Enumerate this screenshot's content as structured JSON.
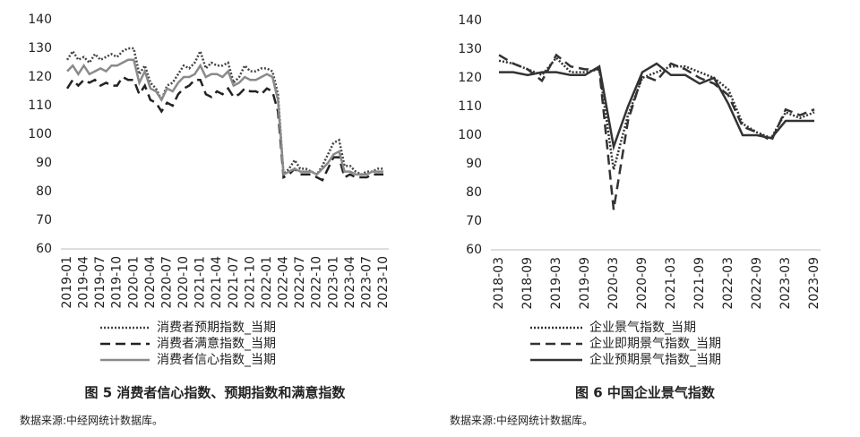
{
  "chart_data": [
    {
      "type": "line",
      "categories": [
        "2019-01",
        null,
        null,
        "2019-04",
        null,
        null,
        "2019-07",
        null,
        null,
        "2019-10",
        null,
        null,
        "2020-01",
        null,
        null,
        "2020-04",
        null,
        null,
        "2020-07",
        null,
        null,
        "2020-10",
        null,
        null,
        "2021-01",
        null,
        null,
        "2021-04",
        null,
        null,
        "2021-07",
        null,
        null,
        "2021-10",
        null,
        null,
        "2022-01",
        null,
        null,
        "2022-04",
        null,
        null,
        "2022-07",
        null,
        null,
        "2022-10",
        null,
        null,
        "2023-01",
        null,
        null,
        "2023-04",
        null,
        null,
        "2023-07",
        null,
        null,
        "2023-10"
      ],
      "series": [
        {
          "name": "消费者预期指数_当期",
          "color": "#444444",
          "dash": "dotted",
          "values": [
            126,
            129,
            126,
            127,
            125,
            128,
            126,
            127,
            128,
            127,
            129,
            130,
            130,
            121,
            124,
            118,
            116,
            112,
            117,
            118,
            121,
            124,
            123,
            125,
            129,
            123,
            125,
            124,
            124,
            125,
            118,
            120,
            124,
            122,
            122,
            123,
            123,
            122,
            114,
            86,
            88,
            91,
            88,
            88,
            87,
            86,
            89,
            93,
            97,
            98,
            89,
            89,
            87,
            86,
            87,
            87,
            88,
            88
          ]
        },
        {
          "name": "消费者满意指数_当期",
          "color": "#222222",
          "dash": "dashed",
          "values": [
            116,
            119,
            117,
            119,
            118,
            119,
            117,
            118,
            117,
            117,
            120,
            119,
            119,
            114,
            117,
            112,
            111,
            108,
            111,
            110,
            114,
            116,
            117,
            119,
            119,
            114,
            113,
            115,
            114,
            116,
            113,
            114,
            116,
            115,
            115,
            114,
            116,
            115,
            108,
            85,
            86,
            88,
            86,
            86,
            86,
            85,
            84,
            88,
            92,
            92,
            85,
            86,
            85,
            85,
            85,
            86,
            86,
            86
          ]
        },
        {
          "name": "消费者信心指数_当期",
          "color": "#8a8a8a",
          "dash": "solid",
          "values": [
            122,
            124,
            121,
            124,
            121,
            122,
            123,
            122,
            124,
            124,
            125,
            126,
            126,
            118,
            122,
            116,
            115,
            112,
            116,
            115,
            118,
            120,
            120,
            121,
            124,
            120,
            121,
            121,
            120,
            122,
            117,
            118,
            120,
            119,
            119,
            120,
            121,
            120,
            112,
            86,
            87,
            88,
            87,
            87,
            87,
            86,
            88,
            90,
            93,
            94,
            87,
            87,
            86,
            86,
            86,
            87,
            87,
            87
          ]
        }
      ],
      "ylim": [
        60,
        140
      ],
      "yticks": [
        60,
        70,
        80,
        90,
        100,
        110,
        120,
        130,
        140
      ],
      "caption": "图 5  消费者信心指数、预期指数和满意指数",
      "source": "数据来源:中经网统计数据库。"
    },
    {
      "type": "line",
      "categories": [
        "2018-03",
        null,
        "2018-09",
        null,
        "2019-03",
        null,
        "2019-09",
        null,
        "2020-03",
        null,
        "2020-09",
        null,
        "2021-03",
        null,
        "2021-09",
        null,
        "2022-03",
        null,
        "2022-09",
        null,
        "2023-03",
        null,
        "2023-09"
      ],
      "series": [
        {
          "name": "企业景气指数_当期",
          "color": "#333333",
          "dash": "dotted",
          "values": [
            126,
            125,
            123,
            121,
            127,
            122,
            122,
            123,
            88,
            107,
            120,
            122,
            124,
            124,
            122,
            120,
            116,
            104,
            101,
            99,
            108,
            106,
            108
          ]
        },
        {
          "name": "企业即期景气指数_当期",
          "color": "#333333",
          "dash": "dashed",
          "values": [
            128,
            125,
            123,
            119,
            128,
            124,
            123,
            123,
            74,
            105,
            121,
            119,
            125,
            123,
            120,
            118,
            114,
            103,
            101,
            98,
            109,
            107,
            109
          ]
        },
        {
          "name": "企业预期景气指数_当期",
          "color": "#333333",
          "dash": "solid",
          "values": [
            122,
            122,
            121,
            122,
            122,
            121,
            121,
            124,
            96,
            110,
            122,
            125,
            121,
            121,
            118,
            120,
            111,
            100,
            100,
            99,
            105,
            105,
            105
          ]
        }
      ],
      "ylim": [
        60,
        140
      ],
      "yticks": [
        60,
        70,
        80,
        90,
        100,
        110,
        120,
        130,
        140
      ],
      "caption": "图 6  中国企业景气指数",
      "source": "数据来源:中经网统计数据库。"
    }
  ]
}
